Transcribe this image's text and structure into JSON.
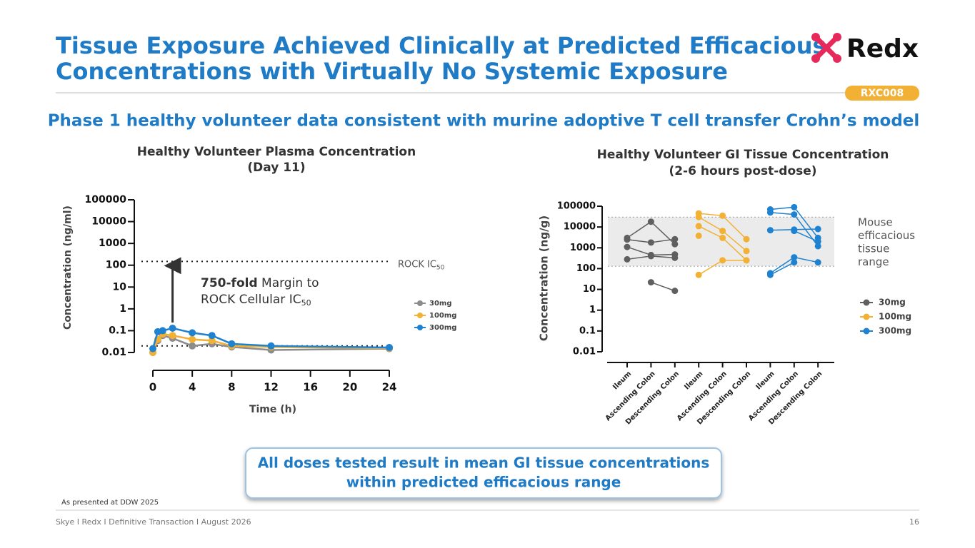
{
  "title_lines": [
    "Tissue Exposure Achieved Clinically at Predicted Efficacious",
    "Concentrations with Virtually No Systemic Exposure"
  ],
  "logo_text": "Redx",
  "badge": "RXC008",
  "subtitle": "Phase 1 healthy volunteer data consistent with murine adoptive T cell transfer Crohn’s model",
  "callout_lines": [
    "All doses tested result in mean GI tissue concentrations",
    "within predicted efficacious range"
  ],
  "source_note": "As presented at DDW 2025",
  "footer": "Skye I Redx I Definitive Transaction I August 2026",
  "page_number": "16",
  "chart_data": [
    {
      "type": "line",
      "title_lines": [
        "Healthy Volunteer Plasma Concentration",
        "(Day 11)"
      ],
      "x_label": "Time (h)",
      "y_label": "Concentration (ng/ml)",
      "y_scale": "log",
      "x": [
        0,
        0.5,
        1,
        2,
        4,
        6,
        8,
        12,
        24
      ],
      "series": [
        {
          "name": "30mg",
          "color": "#8c8c8c",
          "values": [
            0.01,
            0.035,
            0.06,
            0.045,
            0.02,
            0.025,
            0.018,
            0.013,
            0.015
          ]
        },
        {
          "name": "100mg",
          "color": "#f2b134",
          "values": [
            0.01,
            0.04,
            0.07,
            0.06,
            0.04,
            0.035,
            0.02,
            0.018,
            0.016
          ]
        },
        {
          "name": "300mg",
          "color": "#1f82d0",
          "values": [
            0.015,
            0.09,
            0.1,
            0.13,
            0.08,
            0.06,
            0.025,
            0.02,
            0.017
          ]
        }
      ],
      "xlim": [
        0,
        24
      ],
      "xticks": [
        0,
        4,
        8,
        12,
        16,
        20,
        24
      ],
      "ylim": [
        0.01,
        100000
      ],
      "yticks": [
        0.01,
        0.1,
        1,
        10,
        100,
        1000,
        10000,
        100000
      ],
      "reference_lines": [
        {
          "value": 150,
          "label": "ROCK IC",
          "label_sub": "50"
        },
        {
          "value": 0.02
        }
      ],
      "annotation": {
        "bold": "750-fold",
        "text": " Margin to",
        "line2": "ROCK Cellular IC",
        "line2_sub": "50"
      }
    },
    {
      "type": "strip",
      "title_lines": [
        "Healthy Volunteer GI Tissue Concentration",
        "(2-6 hours post-dose)"
      ],
      "y_label": "Concentration (ng/g)",
      "y_scale": "log",
      "categories": [
        "Ileum",
        "Ascending Colon",
        "Descending Colon",
        "Ileum",
        "Ascending Colon",
        "Descending Colon",
        "Ileum",
        "Ascending Colon",
        "Descending Colon"
      ],
      "series": [
        {
          "name": "30mg",
          "color": "#5f5f5f",
          "values": [
            [
              3000,
              18000,
              1500
            ],
            [
              2500,
              1800,
              2600
            ],
            [
              1100,
              450,
              480
            ],
            [
              280,
              400,
              330
            ],
            [
              null,
              22,
              8.5
            ]
          ]
        },
        {
          "name": "100mg",
          "color": "#f2b134",
          "values": [
            [
              45000,
              35000,
              2600
            ],
            [
              30000,
              6500,
              700
            ],
            [
              11000,
              3000,
              250
            ],
            [
              3800,
              null,
              null
            ],
            [
              50,
              250,
              250
            ]
          ]
        },
        {
          "name": "300mg",
          "color": "#1f82d0",
          "values": [
            [
              70000,
              90000,
              3000
            ],
            [
              50000,
              40000,
              1200
            ],
            [
              7000,
              7500,
              8000
            ],
            [
              null,
              6500,
              2000
            ],
            [
              60,
              350,
              200
            ],
            [
              50,
              200,
              null
            ]
          ]
        }
      ],
      "ylim": [
        0.01,
        100000
      ],
      "yticks": [
        0.01,
        0.1,
        1,
        10,
        100,
        1000,
        10000,
        100000
      ],
      "range_band": {
        "range": [
          130,
          30000
        ],
        "label_lines": [
          "Mouse",
          "efficacious",
          "tissue",
          "range"
        ]
      }
    }
  ]
}
